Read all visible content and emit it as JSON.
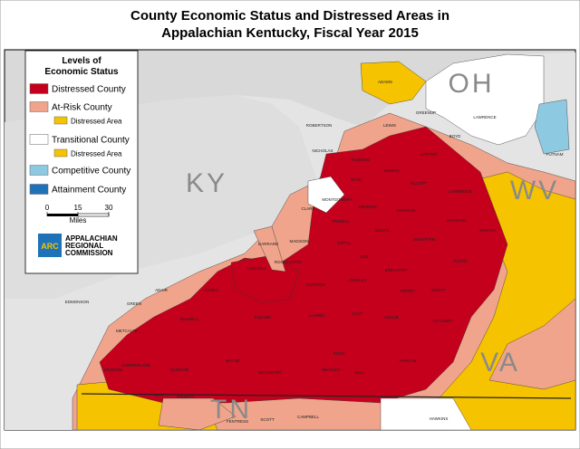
{
  "title": [
    "County Economic Status and Distressed Areas in",
    "Appalachian Kentucky, Fiscal Year 2015"
  ],
  "legend": {
    "heading": [
      "Levels of",
      "Economic Status"
    ],
    "items": [
      {
        "label": "Distressed County",
        "color": "#c4001c"
      },
      {
        "label": "At-Risk County",
        "color": "#efa48b"
      },
      {
        "label": "Distressed Area",
        "color": "#f6c300"
      },
      {
        "label": "Transitional County",
        "color": "#ffffff"
      },
      {
        "label": "Distressed Area",
        "color": "#f6c300"
      },
      {
        "label": "Competitive County",
        "color": "#8ec9e2"
      },
      {
        "label": "Attainment County",
        "color": "#1e73b8"
      }
    ]
  },
  "scale": {
    "ticks": [
      0,
      15,
      30
    ],
    "unit": "Miles"
  },
  "logo": {
    "abbr": "ARC",
    "name": [
      "APPALACHIAN",
      "REGIONAL",
      "COMMISSION"
    ]
  },
  "state_labels": [
    "KY",
    "OH",
    "WV",
    "VA",
    "TN"
  ],
  "county_labels": [
    "ADAMS",
    "LEWIS",
    "GREENUP",
    "BOYD",
    "CARTER",
    "ROWAN",
    "ELLIOTT",
    "LAWRENCE",
    "BATH",
    "FLEMING",
    "ROBERTSON",
    "NICHOLAS",
    "MENIFEE",
    "MORGAN",
    "JOHNSON",
    "MARTIN",
    "MONTGOMERY",
    "POWELL",
    "WOLFE",
    "MAGOFFIN",
    "FLOYD",
    "CLARK",
    "MADISON",
    "ESTILL",
    "LEE",
    "BREATHITT",
    "KNOTT",
    "GARRARD",
    "LINCOLN",
    "ROCKCASTLE",
    "JACKSON",
    "OWSLEY",
    "PERRY",
    "LETCHER",
    "CASEY",
    "ADAIR",
    "GREEN",
    "PULASKI",
    "LAUREL",
    "CLAY",
    "LESLIE",
    "HARLAN",
    "KNOX",
    "BELL",
    "WHITLEY",
    "MCCREARY",
    "WAYNE",
    "RUSSELL",
    "CLINTON",
    "CUMBERLAND",
    "MONROE",
    "METCALFE",
    "EDMONSON",
    "PUTNAM",
    "LAWRENCE",
    "CLAY",
    "PICKETT",
    "FENTRESS",
    "SCOTT",
    "CAMPBELL",
    "HAWKINS"
  ]
}
